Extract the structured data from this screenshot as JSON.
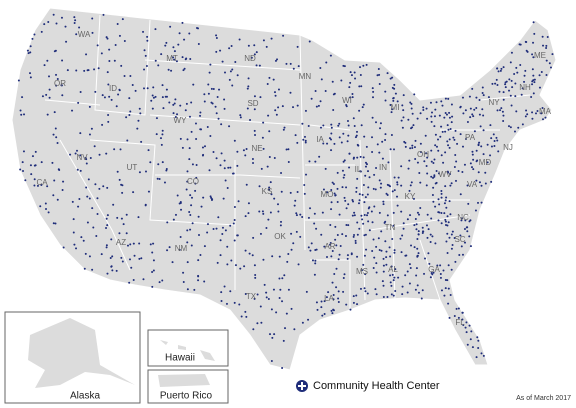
{
  "map": {
    "state_labels": [
      "WA",
      "OR",
      "ID",
      "MT",
      "WY",
      "NV",
      "CA",
      "UT",
      "CO",
      "AZ",
      "NM",
      "ND",
      "SD",
      "NE",
      "KS",
      "OK",
      "TX",
      "MN",
      "IA",
      "MO",
      "AR",
      "LA",
      "WI",
      "MI",
      "IL",
      "IN",
      "OH",
      "KY",
      "TN",
      "MS",
      "AL",
      "GA",
      "FL",
      "SC",
      "NC",
      "VA",
      "WV",
      "PA",
      "NY",
      "ME",
      "NH",
      "MA",
      "NJ",
      "MD"
    ]
  },
  "insets": {
    "alaska": "Alaska",
    "hawaii": "Hawaii",
    "puerto_rico": "Puerto Rico"
  },
  "legend": "Community Health Center",
  "note": "As of March 2017"
}
